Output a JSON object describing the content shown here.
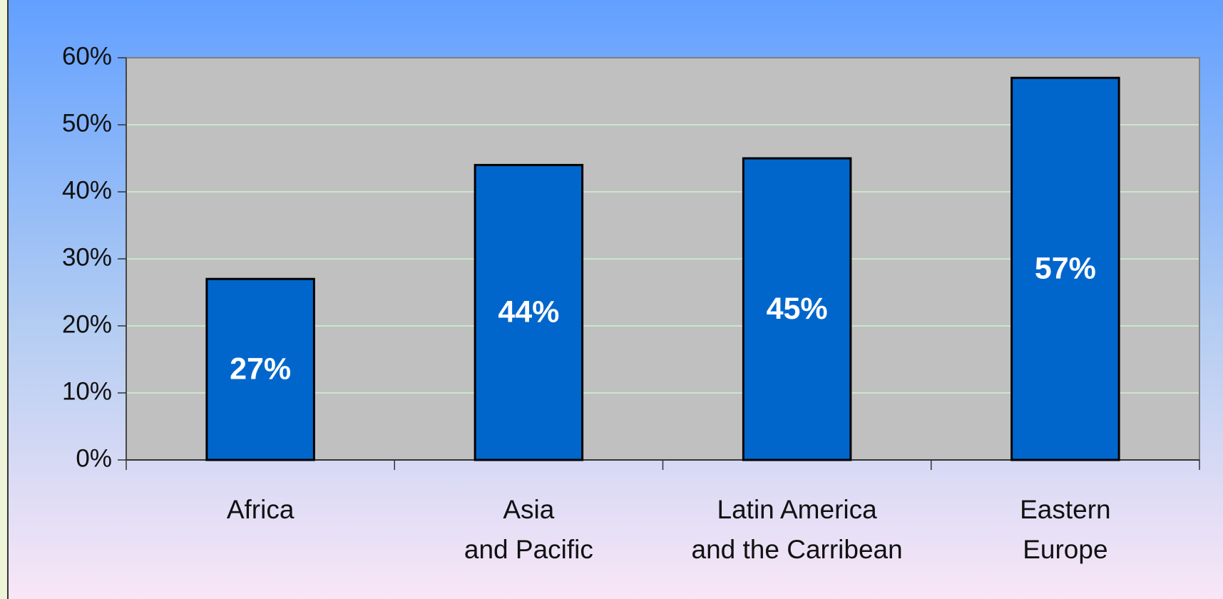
{
  "chart_data": {
    "type": "bar",
    "categories": [
      "Africa",
      "Asia\nand Pacific",
      "Latin America\nand the Carribean",
      "Eastern\nEurope"
    ],
    "values": [
      27,
      44,
      45,
      57
    ],
    "value_labels": [
      "27%",
      "44%",
      "45%",
      "57%"
    ],
    "color": "#0066cc",
    "ylim": [
      0,
      60
    ],
    "yticks": [
      {
        "value": 0,
        "label": "0%"
      },
      {
        "value": 10,
        "label": "10%"
      },
      {
        "value": 20,
        "label": "20%"
      },
      {
        "value": 30,
        "label": "30%"
      },
      {
        "value": 40,
        "label": "40%"
      },
      {
        "value": 50,
        "label": "50%"
      },
      {
        "value": 60,
        "label": "60%"
      }
    ],
    "grid": true
  }
}
